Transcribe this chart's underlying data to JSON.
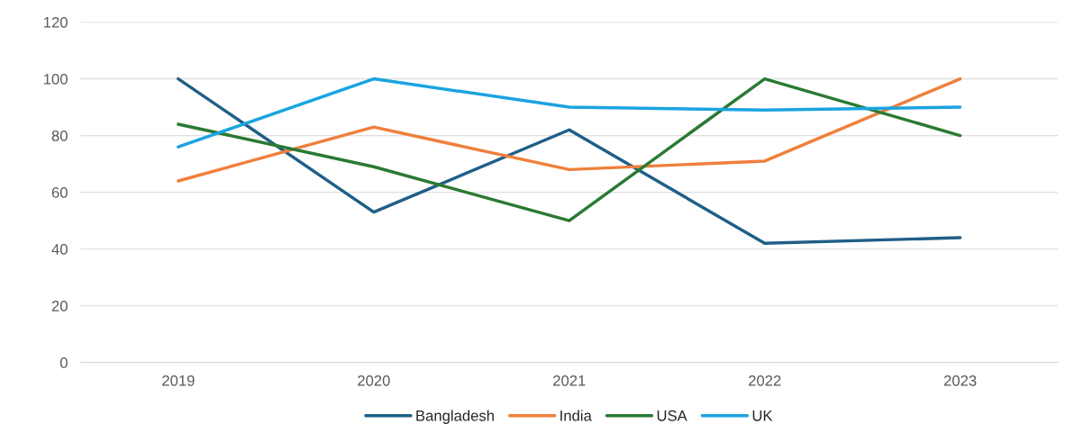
{
  "chart_data": {
    "type": "line",
    "categories": [
      "2019",
      "2020",
      "2021",
      "2022",
      "2023"
    ],
    "series": [
      {
        "name": "Bangladesh",
        "color": "#1f5f87",
        "values": [
          100,
          53,
          82,
          42,
          44
        ]
      },
      {
        "name": "India",
        "color": "#f07f3c",
        "values": [
          64,
          83,
          68,
          71,
          100
        ]
      },
      {
        "name": "USA",
        "color": "#2a7a32",
        "values": [
          84,
          69,
          50,
          100,
          80
        ]
      },
      {
        "name": "UK",
        "color": "#1aa4e0",
        "values": [
          76,
          100,
          90,
          89,
          90
        ]
      }
    ],
    "ylim": [
      0,
      120
    ],
    "yticks": [
      0,
      20,
      40,
      60,
      80,
      100,
      120
    ],
    "grid": "y",
    "legend": "bottom",
    "marker": "none",
    "line_style": "solid"
  }
}
